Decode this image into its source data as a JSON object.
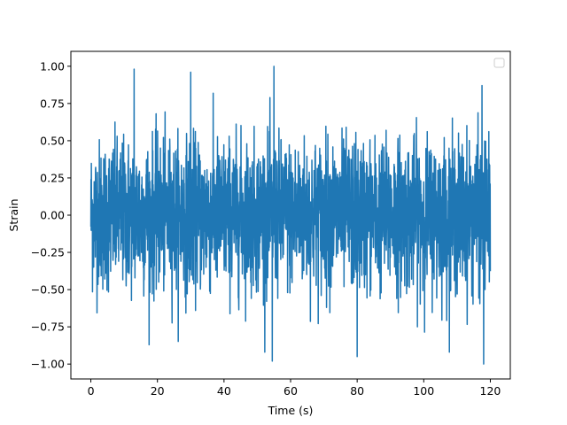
{
  "chart_data": {
    "type": "line",
    "title": "",
    "xlabel": "Time (s)",
    "ylabel": "Strain",
    "xlim": [
      -6,
      126
    ],
    "ylim": [
      -1.1,
      1.1
    ],
    "x_ticks": [
      0,
      20,
      40,
      60,
      80,
      100,
      120
    ],
    "x_tick_labels": [
      "0",
      "20",
      "40",
      "60",
      "80",
      "100",
      "120"
    ],
    "y_ticks": [
      -1.0,
      -0.75,
      -0.5,
      -0.25,
      0.0,
      0.25,
      0.5,
      0.75,
      1.0
    ],
    "y_tick_labels": [
      "−1.00",
      "−0.75",
      "−0.50",
      "−0.25",
      "0.00",
      "0.25",
      "0.50",
      "0.75",
      "1.00"
    ],
    "grid": false,
    "legend": {
      "placement": "upper-right",
      "entries": []
    },
    "series": [
      {
        "color": "#1f77b4",
        "x_range": [
          0,
          120
        ],
        "y_range": [
          -1.0,
          1.0
        ],
        "peaks": [
          {
            "x": 13.0,
            "y": 0.98
          },
          {
            "x": 30.0,
            "y": 0.96
          },
          {
            "x": 55.0,
            "y": 1.0
          },
          {
            "x": 117.5,
            "y": 0.87
          },
          {
            "x": 54.5,
            "y": -0.98
          },
          {
            "x": 118.0,
            "y": -1.0
          },
          {
            "x": 80.0,
            "y": -0.95
          }
        ]
      }
    ]
  }
}
